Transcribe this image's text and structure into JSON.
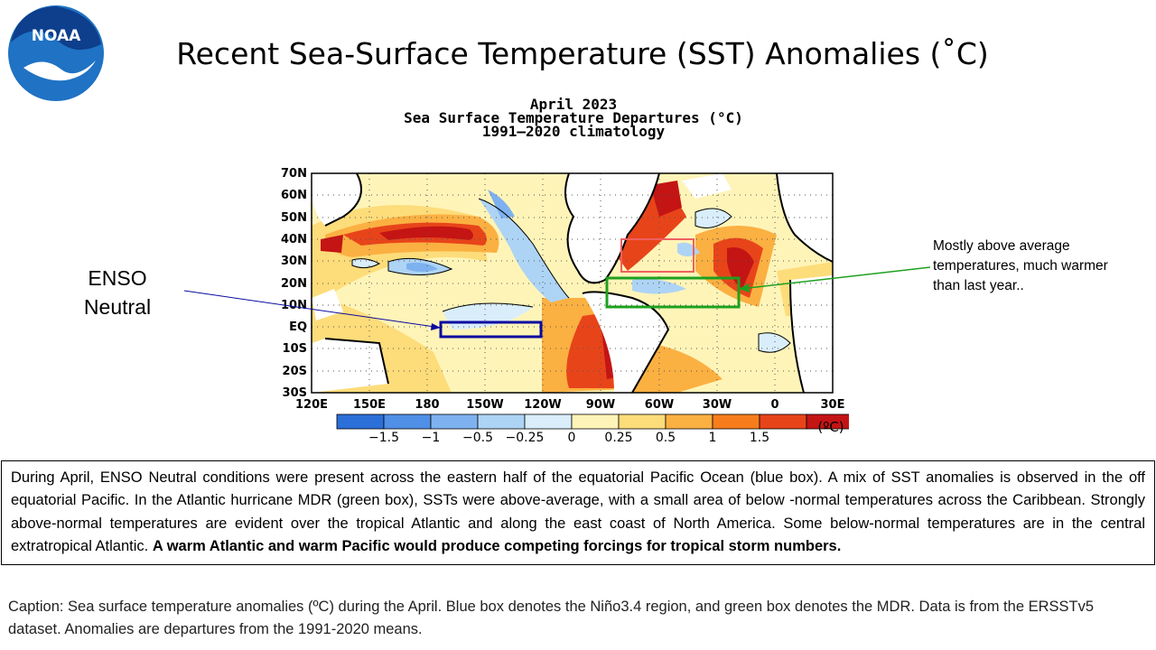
{
  "slide": {
    "title": "Recent Sea-Surface Temperature (SST) Anomalies (˚C)",
    "logo_text": "NOAA"
  },
  "map": {
    "title_line1": "April 2023",
    "title_line2": "Sea Surface Temperature Departures (°C)",
    "title_line3": "1991–2020 climatology",
    "lat_labels": [
      "70N",
      "60N",
      "50N",
      "40N",
      "30N",
      "20N",
      "10N",
      "EQ",
      "10S",
      "20S",
      "30S"
    ],
    "lon_labels": [
      "120E",
      "150E",
      "180",
      "150W",
      "120W",
      "90W",
      "60W",
      "30W",
      "0",
      "30E"
    ],
    "colorbar": {
      "colors": [
        "#2b6fd8",
        "#4f8fe6",
        "#7eb1ef",
        "#aed4f5",
        "#d9eefa",
        "#fff4b8",
        "#fddc7a",
        "#fbb042",
        "#f77d1c",
        "#e8441a",
        "#c41414"
      ],
      "labels": [
        "−1.5",
        "−1",
        "−0.5",
        "−0.25",
        "0",
        "0.25",
        "0.5",
        "1",
        "1.5"
      ],
      "unit": "(ºC)"
    },
    "accent_colors": {
      "nino_box": "#0a0aa0",
      "mdr_box": "#1ea01e",
      "atlantic_box": "#f06060"
    }
  },
  "annotations": {
    "enso_line1": "ENSO",
    "enso_line2": "Neutral",
    "mdr_text": "Mostly above average temperatures, much warmer than last year.."
  },
  "description": {
    "normal": "During April, ENSO Neutral conditions were present across the eastern half of the equatorial Pacific Ocean (blue box). A mix of SST anomalies is observed in the off equatorial Pacific. In the Atlantic hurricane MDR (green box), SSTs were above-average, with a small area of below -normal temperatures across the Caribbean. Strongly above-normal temperatures are evident over the tropical Atlantic and along the east coast of North America. Some below-normal temperatures are in the central extratropical Atlantic. ",
    "bold": "A warm Atlantic and warm Pacific would produce competing forcings for tropical storm numbers."
  },
  "caption": "Caption: Sea surface temperature anomalies (ºC) during the April. Blue box denotes the Niño3.4 region, and green box denotes the MDR. Data is from the ERSSTv5 dataset. Anomalies are departures from the 1991-2020 means."
}
